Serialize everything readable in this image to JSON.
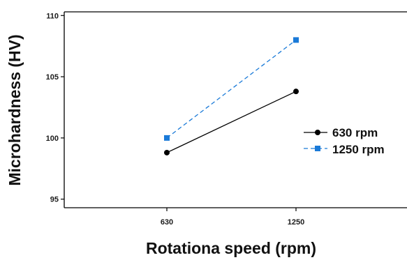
{
  "chart_data": {
    "type": "line",
    "categories": [
      "630",
      "1250"
    ],
    "xlabel": "Rotationa speed (rpm)",
    "ylabel": "Microhardness (HV)",
    "yticks": [
      95,
      100,
      105,
      110
    ],
    "ylim": [
      94.3,
      110.3
    ],
    "grid": false,
    "legend_position": "right",
    "series": [
      {
        "name": "630 rpm",
        "values": [
          98.8,
          103.8
        ],
        "color": "#000000",
        "line_style": "solid",
        "marker": "circle"
      },
      {
        "name": "1250 rpm",
        "values": [
          100.0,
          108.0
        ],
        "color": "#1a7ad8",
        "line_style": "dashed",
        "marker": "square"
      }
    ]
  }
}
